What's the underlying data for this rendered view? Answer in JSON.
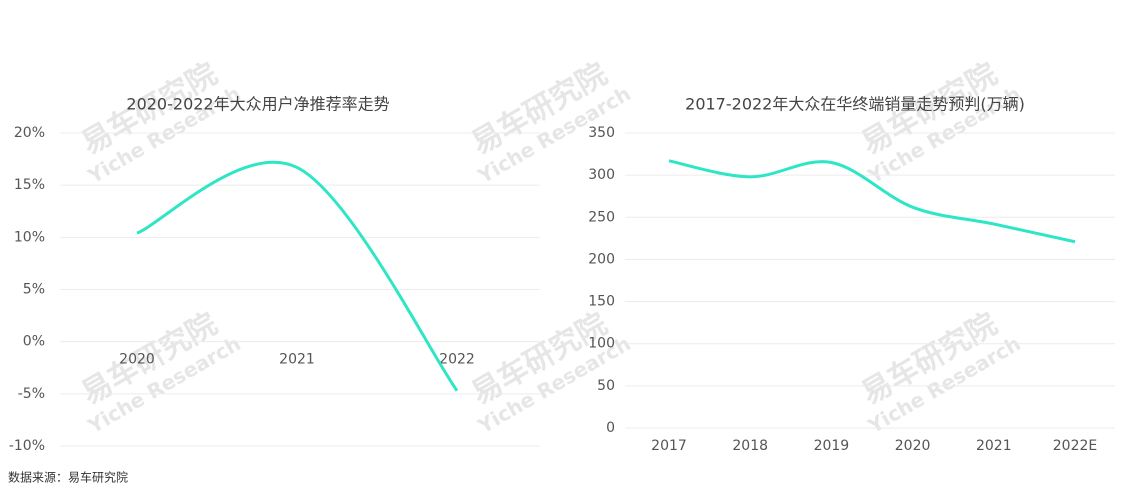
{
  "chart_data": [
    {
      "type": "line",
      "title": "2020-2022年大众用户净推荐率走势",
      "categories": [
        "2020",
        "2021",
        "2022"
      ],
      "series": [
        {
          "name": "净推荐率",
          "color": "#2ee6c6",
          "values": [
            10.4,
            16.7,
            -4.7
          ]
        }
      ],
      "ylim": [
        -10,
        20
      ],
      "yticks": [
        {
          "value": -10,
          "label": "-10%"
        },
        {
          "value": -5,
          "label": "-5%"
        },
        {
          "value": 0,
          "label": "0%"
        },
        {
          "value": 5,
          "label": "5%"
        },
        {
          "value": 10,
          "label": "10%"
        },
        {
          "value": 15,
          "label": "15%"
        },
        {
          "value": 20,
          "label": "20%"
        }
      ],
      "grid": true
    },
    {
      "type": "line",
      "title": "2017-2022年大众在华终端销量走势预判(万辆)",
      "categories": [
        "2017",
        "2018",
        "2019",
        "2020",
        "2021",
        "2022E"
      ],
      "series": [
        {
          "name": "销量",
          "color": "#2ee6c6",
          "values": [
            317,
            298,
            315,
            262,
            242,
            221
          ]
        }
      ],
      "ylim": [
        0,
        350
      ],
      "yticks": [
        0,
        50,
        100,
        150,
        200,
        250,
        300,
        350
      ],
      "grid": true
    }
  ],
  "source": "数据来源：易车研究院",
  "watermark": {
    "cn": "易车研究院",
    "en": "Yiche Research"
  }
}
